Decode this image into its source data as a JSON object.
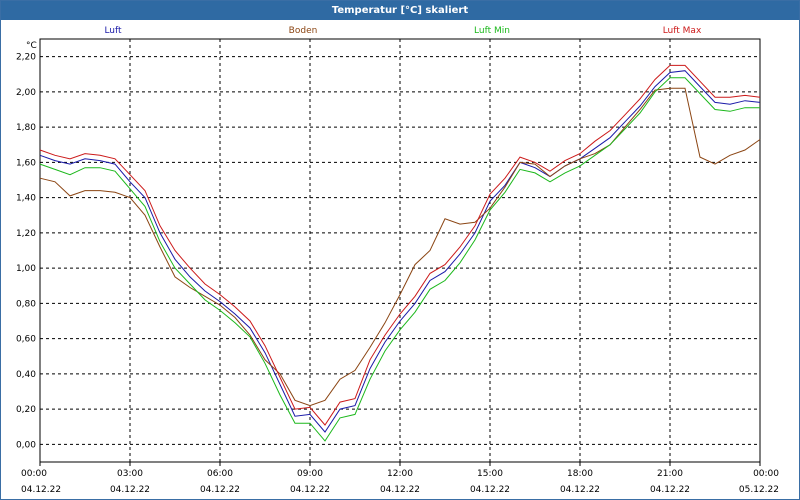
{
  "window": {
    "title": "Temperatur [°C] skaliert"
  },
  "chart_data": {
    "type": "line",
    "title": "Temperatur [°C] skaliert",
    "unit": "°C",
    "ylim": [
      -0.1,
      2.3
    ],
    "xlim": [
      0,
      24
    ],
    "grid": true,
    "legend_position": "top",
    "y_ticks": [
      "0,00",
      "0,20",
      "0,40",
      "0,60",
      "0,80",
      "1,00",
      "1,20",
      "1,40",
      "1,60",
      "1,80",
      "2,00",
      "2,20"
    ],
    "x_ticks": [
      {
        "time": "00:00",
        "date": "04.12.22"
      },
      {
        "time": "03:00",
        "date": "04.12.22"
      },
      {
        "time": "06:00",
        "date": "04.12.22"
      },
      {
        "time": "09:00",
        "date": "04.12.22"
      },
      {
        "time": "12:00",
        "date": "04.12.22"
      },
      {
        "time": "15:00",
        "date": "04.12.22"
      },
      {
        "time": "18:00",
        "date": "04.12.22"
      },
      {
        "time": "21:00",
        "date": "04.12.22"
      },
      {
        "time": "00:00",
        "date": "05.12.22"
      }
    ],
    "series": [
      {
        "name": "Luft",
        "color": "#1a1aa8",
        "x": [
          0,
          0.5,
          1,
          1.5,
          2,
          2.5,
          3,
          3.5,
          4,
          4.5,
          5,
          5.5,
          6,
          6.5,
          7,
          7.5,
          8,
          8.5,
          9,
          9.5,
          10,
          10.5,
          11,
          11.5,
          12,
          12.5,
          13,
          13.5,
          14,
          14.5,
          15,
          15.5,
          16,
          16.5,
          17,
          17.5,
          18,
          18.5,
          19,
          19.5,
          20,
          20.5,
          21,
          21.5,
          22,
          22.5,
          23,
          23.5,
          24
        ],
        "y": [
          1.64,
          1.61,
          1.59,
          1.62,
          1.61,
          1.59,
          1.49,
          1.4,
          1.2,
          1.05,
          0.95,
          0.87,
          0.81,
          0.74,
          0.66,
          0.52,
          0.34,
          0.16,
          0.17,
          0.07,
          0.2,
          0.22,
          0.43,
          0.58,
          0.7,
          0.8,
          0.93,
          0.98,
          1.08,
          1.2,
          1.38,
          1.47,
          1.6,
          1.57,
          1.52,
          1.58,
          1.62,
          1.68,
          1.74,
          1.83,
          1.92,
          2.03,
          2.11,
          2.12,
          2.03,
          1.94,
          1.93,
          1.95,
          1.94
        ]
      },
      {
        "name": "Boden",
        "color": "#8b4513",
        "x": [
          0,
          0.5,
          1,
          1.5,
          2,
          2.5,
          3,
          3.5,
          4,
          4.5,
          5,
          5.5,
          6,
          6.5,
          7,
          7.5,
          8,
          8.5,
          9,
          9.5,
          10,
          10.5,
          11,
          11.5,
          12,
          12.5,
          13,
          13.5,
          14,
          14.5,
          15,
          15.5,
          16,
          16.5,
          17,
          17.5,
          18,
          18.5,
          19,
          19.5,
          20,
          20.5,
          21,
          21.5,
          22,
          22.5,
          23,
          23.5,
          24
        ],
        "y": [
          1.51,
          1.49,
          1.41,
          1.44,
          1.44,
          1.43,
          1.4,
          1.3,
          1.12,
          0.95,
          0.89,
          0.84,
          0.79,
          0.72,
          0.62,
          0.48,
          0.4,
          0.25,
          0.22,
          0.25,
          0.37,
          0.42,
          0.55,
          0.69,
          0.85,
          1.02,
          1.1,
          1.28,
          1.25,
          1.26,
          1.34,
          1.46,
          1.6,
          1.59,
          1.52,
          1.58,
          1.62,
          1.65,
          1.7,
          1.8,
          1.9,
          2.01,
          2.02,
          2.02,
          1.63,
          1.59,
          1.64,
          1.67,
          1.73
        ]
      },
      {
        "name": "Luft Min",
        "color": "#1cb81c",
        "x": [
          0,
          0.5,
          1,
          1.5,
          2,
          2.5,
          3,
          3.5,
          4,
          4.5,
          5,
          5.5,
          6,
          6.5,
          7,
          7.5,
          8,
          8.5,
          9,
          9.5,
          10,
          10.5,
          11,
          11.5,
          12,
          12.5,
          13,
          13.5,
          14,
          14.5,
          15,
          15.5,
          16,
          16.5,
          17,
          17.5,
          18,
          18.5,
          19,
          19.5,
          20,
          20.5,
          21,
          21.5,
          22,
          22.5,
          23,
          23.5,
          24
        ],
        "y": [
          1.59,
          1.56,
          1.53,
          1.57,
          1.57,
          1.55,
          1.45,
          1.35,
          1.15,
          1.0,
          0.91,
          0.82,
          0.76,
          0.69,
          0.61,
          0.46,
          0.28,
          0.12,
          0.12,
          0.02,
          0.15,
          0.17,
          0.37,
          0.53,
          0.65,
          0.75,
          0.88,
          0.93,
          1.03,
          1.16,
          1.33,
          1.43,
          1.56,
          1.54,
          1.49,
          1.54,
          1.58,
          1.64,
          1.7,
          1.79,
          1.88,
          2.0,
          2.08,
          2.08,
          1.99,
          1.9,
          1.89,
          1.91,
          1.91
        ]
      },
      {
        "name": "Luft Max",
        "color": "#cc1a1a",
        "x": [
          0,
          0.5,
          1,
          1.5,
          2,
          2.5,
          3,
          3.5,
          4,
          4.5,
          5,
          5.5,
          6,
          6.5,
          7,
          7.5,
          8,
          8.5,
          9,
          9.5,
          10,
          10.5,
          11,
          11.5,
          12,
          12.5,
          13,
          13.5,
          14,
          14.5,
          15,
          15.5,
          16,
          16.5,
          17,
          17.5,
          18,
          18.5,
          19,
          19.5,
          20,
          20.5,
          21,
          21.5,
          22,
          22.5,
          23,
          23.5,
          24
        ],
        "y": [
          1.67,
          1.64,
          1.62,
          1.65,
          1.64,
          1.62,
          1.53,
          1.44,
          1.24,
          1.1,
          1.0,
          0.91,
          0.85,
          0.78,
          0.7,
          0.56,
          0.38,
          0.2,
          0.21,
          0.11,
          0.24,
          0.26,
          0.48,
          0.62,
          0.74,
          0.84,
          0.97,
          1.02,
          1.12,
          1.24,
          1.42,
          1.51,
          1.63,
          1.6,
          1.55,
          1.61,
          1.65,
          1.72,
          1.78,
          1.87,
          1.96,
          2.07,
          2.15,
          2.15,
          2.06,
          1.97,
          1.97,
          1.98,
          1.97
        ]
      }
    ]
  }
}
